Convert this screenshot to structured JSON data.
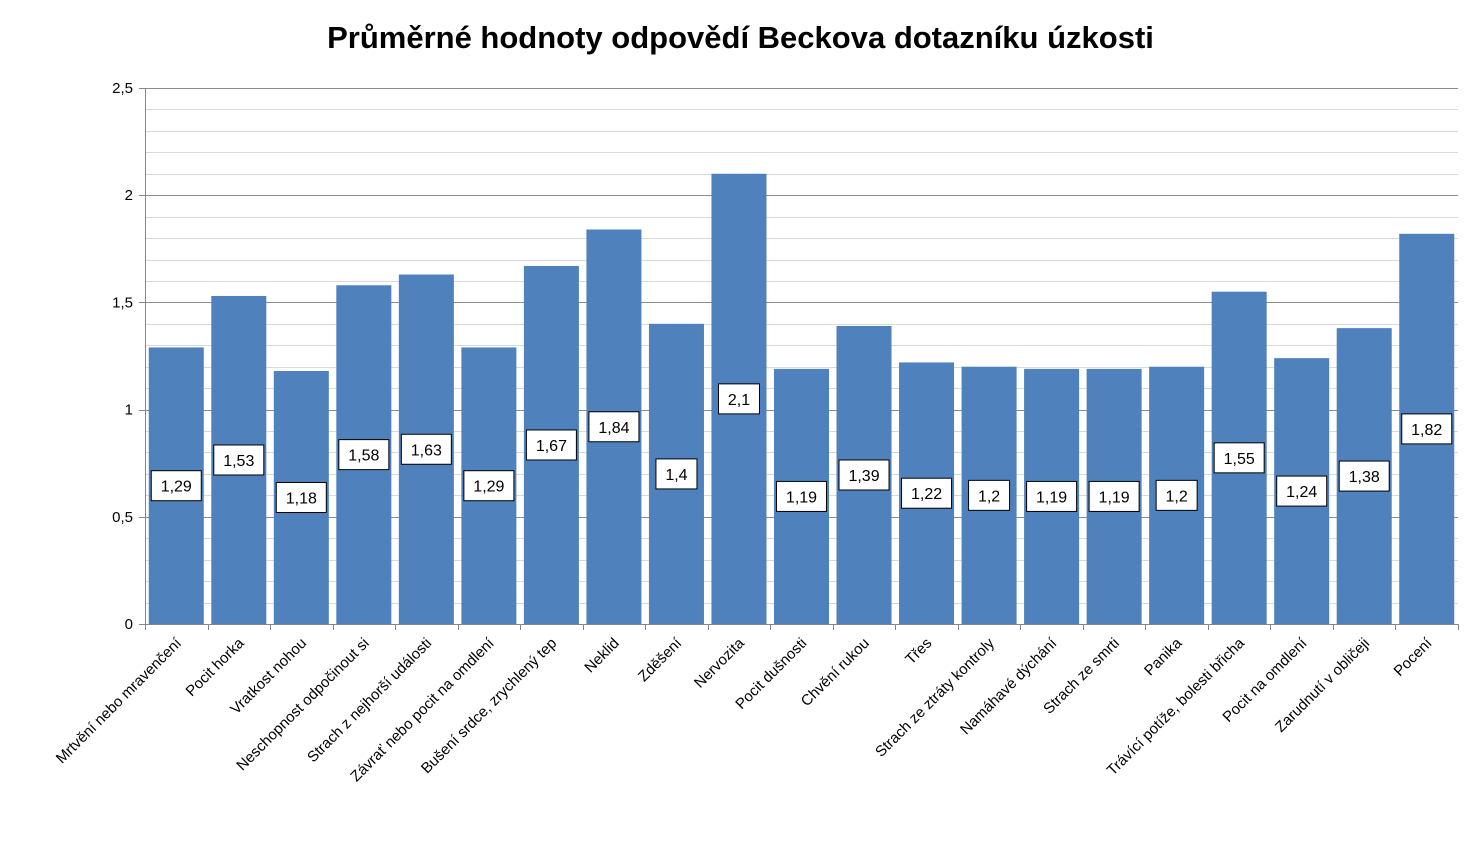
{
  "chart_data": {
    "type": "bar",
    "title": "Průměrné hodnoty odpovědí Beckova dotazníku úzkosti",
    "xlabel": "",
    "ylabel": "",
    "ylim": [
      0,
      2.5
    ],
    "yticks": [
      "0",
      "0,5",
      "1",
      "1,5",
      "2",
      "2,5"
    ],
    "grid": true,
    "legend": "none",
    "bar_color": "#4F81BD",
    "categories": [
      "Mrtvění nebo mravenčení",
      "Pocit horka",
      "Vratkost nohou",
      "Neschopnost odpočinout si",
      "Strach z nejhorší události",
      "Závrať nebo pocit na omdlení",
      "Bušení srdce, zrychlený tep",
      "Neklid",
      "Zděšení",
      "Nervozita",
      "Pocit dušnosti",
      "Chvění rukou",
      "Třes",
      "Strach ze ztráty kontroly",
      "Namáhavé dýchání",
      "Strach ze smrti",
      "Panika",
      "Trávící potíže, bolesti břicha",
      "Pocit na omdlení",
      "Zarudnutí v obličeji",
      "Pocení"
    ],
    "values": [
      1.29,
      1.53,
      1.18,
      1.58,
      1.63,
      1.29,
      1.67,
      1.84,
      1.4,
      2.1,
      1.19,
      1.39,
      1.22,
      1.2,
      1.19,
      1.19,
      1.2,
      1.55,
      1.24,
      1.38,
      1.82
    ],
    "data_labels": [
      "1,29",
      "1,53",
      "1,18",
      "1,58",
      "1,63",
      "1,29",
      "1,67",
      "1,84",
      "1,4",
      "2,1",
      "1,19",
      "1,39",
      "1,22",
      "1,2",
      "1,19",
      "1,19",
      "1,2",
      "1,55",
      "1,24",
      "1,38",
      "1,82"
    ]
  }
}
